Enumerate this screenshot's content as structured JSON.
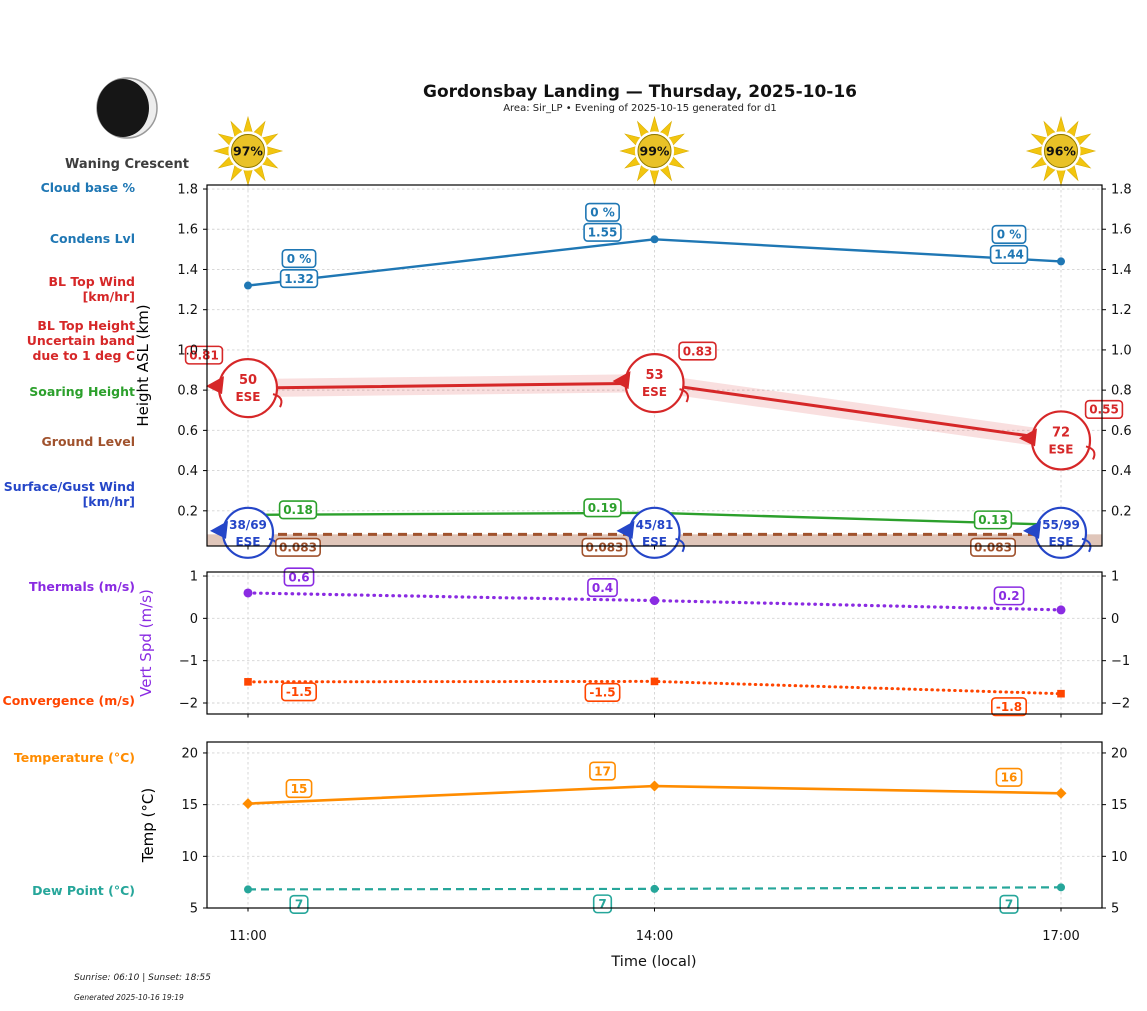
{
  "header": {
    "title": "Gordonsbay Landing — Thursday, 2025-10-16",
    "subtitle": "Area: Sir_LP • Evening of 2025-10-15 generated for d1",
    "moon_phase": "Waning Crescent"
  },
  "sun_icons": [
    "97%",
    "99%",
    "96%"
  ],
  "times": [
    "11:00",
    "14:00",
    "17:00"
  ],
  "xlabel": "Time (local)",
  "sidebar": {
    "cloud_base": "Cloud base %",
    "condens": "Condens Lvl",
    "bl_top_wind_1": "BL Top Wind",
    "bl_top_wind_2": "[km/hr]",
    "bl_top_height_1": "BL Top Height",
    "bl_top_height_2": "Uncertain band",
    "bl_top_height_3": "due to 1 deg C",
    "soaring": "Soaring Height",
    "ground": "Ground Level",
    "surface_wind_1": "Surface/Gust Wind",
    "surface_wind_2": "[km/hr]",
    "thermals": "Thermals (m/s)",
    "convergence": "Convergence (m/s)",
    "temperature": "Temperature (°C)",
    "dew_point": "Dew Point (°C)"
  },
  "footer": {
    "sun_times": "Sunrise: 06:10 | Sunset: 18:55",
    "generated": "Generated 2025-10-16 19:19"
  },
  "chart_data": [
    {
      "type": "line",
      "ylabel": "Height ASL (km)",
      "ylim": [
        0.025,
        1.82
      ],
      "yticks": [
        0.2,
        0.4,
        0.6,
        0.8,
        1.0,
        1.2,
        1.4,
        1.6,
        1.8
      ],
      "x": [
        "11:00",
        "14:00",
        "17:00"
      ],
      "series": [
        {
          "name": "Condens Lvl / Cloud base %",
          "color": "#1f77b4",
          "values": [
            1.32,
            1.55,
            1.44
          ],
          "value_labels": [
            "1.32",
            "1.55",
            "1.44"
          ],
          "pct_labels": [
            "0 %",
            "0 %",
            "0 %"
          ]
        },
        {
          "name": "BL Top Height",
          "color": "#d62728",
          "values": [
            0.81,
            0.835,
            0.55
          ],
          "value_labels": [
            "0.81",
            "0.83",
            "0.55"
          ],
          "uncertainty_band": 0.045,
          "wind_labels": [
            [
              "50",
              "ESE"
            ],
            [
              "53",
              "ESE"
            ],
            [
              "72",
              "ESE"
            ]
          ]
        },
        {
          "name": "Soaring Height",
          "color": "#2ca02c",
          "values": [
            0.18,
            0.19,
            0.13
          ],
          "value_labels": [
            "0.18",
            "0.19",
            "0.13"
          ]
        },
        {
          "name": "Ground Level",
          "color": "#a0522d",
          "style": "dashed",
          "fill_below": true,
          "values": [
            0.083,
            0.083,
            0.083
          ],
          "value_labels": [
            "0.083",
            "0.083",
            "0.083"
          ]
        },
        {
          "name": "Surface/Gust Wind",
          "color": "#2546c8",
          "at_value": 0.083,
          "wind_labels": [
            [
              "38/69",
              "ESE"
            ],
            [
              "45/81",
              "ESE"
            ],
            [
              "55/99",
              "ESE"
            ]
          ]
        }
      ]
    },
    {
      "type": "line",
      "ylabel": "Vert Spd (m/s)",
      "ylabel_color": "#8a2be2",
      "ylim": [
        -2.26,
        1.095
      ],
      "yticks": [
        1,
        0,
        -1,
        -2
      ],
      "x": [
        "11:00",
        "14:00",
        "17:00"
      ],
      "series": [
        {
          "name": "Thermals",
          "color": "#8a2be2",
          "style": "dotted",
          "marker": "circle",
          "values": [
            0.6,
            0.42,
            0.2
          ],
          "value_labels": [
            "0.6",
            "0.4",
            "0.2"
          ]
        },
        {
          "name": "Convergence",
          "color": "#ff4500",
          "style": "dotted",
          "marker": "square",
          "values": [
            -1.5,
            -1.49,
            -1.78
          ],
          "value_labels": [
            "-1.5",
            "-1.5",
            "-1.8"
          ]
        }
      ]
    },
    {
      "type": "line",
      "ylabel": "Temp (°C)",
      "ylim": [
        5,
        21.06
      ],
      "yticks": [
        20,
        15,
        10,
        5
      ],
      "x": [
        "11:00",
        "14:00",
        "17:00"
      ],
      "series": [
        {
          "name": "Temperature",
          "color": "#ff8c00",
          "marker": "diamond",
          "values": [
            15.1,
            16.8,
            16.1
          ],
          "value_labels": [
            "15",
            "17",
            "16"
          ]
        },
        {
          "name": "Dew Point",
          "color": "#26a69a",
          "style": "dashed",
          "marker": "circle",
          "values": [
            6.8,
            6.85,
            7.0
          ],
          "value_labels": [
            "7",
            "7",
            "7"
          ]
        }
      ]
    }
  ]
}
